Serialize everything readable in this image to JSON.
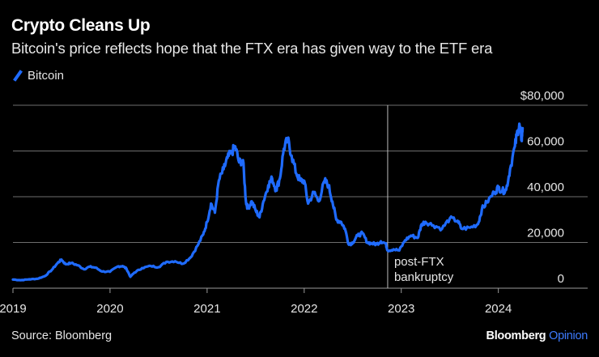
{
  "header": {
    "title": "Crypto Cleans Up",
    "subtitle": "Bitcoin's price reflects hope that the FTX era has given way to the ETF era"
  },
  "footer": {
    "source": "Source: Bloomberg",
    "brand_main": "Bloomberg",
    "brand_accent": "Opinion"
  },
  "colors": {
    "line": "#1f6bff",
    "grid": "#6e6e6e",
    "background": "#000000",
    "text": "#e6e6e6"
  },
  "chart_data": {
    "type": "line",
    "title": "Crypto Cleans Up",
    "legend": [
      "Bitcoin"
    ],
    "legend_position": "top-left",
    "xlabel": "",
    "ylabel": "",
    "xlim": [
      2019.0,
      2024.92
    ],
    "ylim": [
      0,
      80000
    ],
    "x_ticks": [
      2019,
      2020,
      2021,
      2022,
      2023,
      2024
    ],
    "x_tick_labels": [
      "2019",
      "2020",
      "2021",
      "2022",
      "2023",
      "2024"
    ],
    "y_ticks": [
      0,
      20000,
      40000,
      60000,
      80000
    ],
    "y_tick_labels": [
      "0",
      "20,000",
      "40,000",
      "60,000",
      "$80,000"
    ],
    "annotation": {
      "x": 2022.86,
      "lines": [
        "post-FTX",
        "bankruptcy"
      ]
    },
    "series": [
      {
        "name": "Bitcoin",
        "points": [
          [
            2019.0,
            3800
          ],
          [
            2019.08,
            3500
          ],
          [
            2019.17,
            3900
          ],
          [
            2019.25,
            4100
          ],
          [
            2019.33,
            5300
          ],
          [
            2019.4,
            8000
          ],
          [
            2019.46,
            11000
          ],
          [
            2019.5,
            12500
          ],
          [
            2019.54,
            10500
          ],
          [
            2019.6,
            11000
          ],
          [
            2019.67,
            10000
          ],
          [
            2019.73,
            8300
          ],
          [
            2019.79,
            9400
          ],
          [
            2019.85,
            9000
          ],
          [
            2019.92,
            7300
          ],
          [
            2020.0,
            7200
          ],
          [
            2020.08,
            9500
          ],
          [
            2020.13,
            9700
          ],
          [
            2020.17,
            8500
          ],
          [
            2020.21,
            5000
          ],
          [
            2020.25,
            6800
          ],
          [
            2020.33,
            8800
          ],
          [
            2020.42,
            9700
          ],
          [
            2020.5,
            9200
          ],
          [
            2020.58,
            11500
          ],
          [
            2020.67,
            11800
          ],
          [
            2020.75,
            10700
          ],
          [
            2020.83,
            13500
          ],
          [
            2020.9,
            18500
          ],
          [
            2020.96,
            23500
          ],
          [
            2021.0,
            29000
          ],
          [
            2021.04,
            37000
          ],
          [
            2021.08,
            33000
          ],
          [
            2021.12,
            47000
          ],
          [
            2021.17,
            52000
          ],
          [
            2021.21,
            57000
          ],
          [
            2021.25,
            59000
          ],
          [
            2021.29,
            62000
          ],
          [
            2021.33,
            55000
          ],
          [
            2021.37,
            56000
          ],
          [
            2021.4,
            38000
          ],
          [
            2021.42,
            35000
          ],
          [
            2021.46,
            38000
          ],
          [
            2021.5,
            34000
          ],
          [
            2021.54,
            31000
          ],
          [
            2021.58,
            38000
          ],
          [
            2021.63,
            45000
          ],
          [
            2021.67,
            48000
          ],
          [
            2021.71,
            43000
          ],
          [
            2021.75,
            48000
          ],
          [
            2021.79,
            61000
          ],
          [
            2021.83,
            65000
          ],
          [
            2021.87,
            58000
          ],
          [
            2021.92,
            50000
          ],
          [
            2021.96,
            47000
          ],
          [
            2022.0,
            47000
          ],
          [
            2022.04,
            37000
          ],
          [
            2022.1,
            42000
          ],
          [
            2022.15,
            38000
          ],
          [
            2022.21,
            47000
          ],
          [
            2022.25,
            45000
          ],
          [
            2022.29,
            38000
          ],
          [
            2022.33,
            30000
          ],
          [
            2022.38,
            29000
          ],
          [
            2022.42,
            26000
          ],
          [
            2022.46,
            19000
          ],
          [
            2022.5,
            20000
          ],
          [
            2022.55,
            23000
          ],
          [
            2022.6,
            24000
          ],
          [
            2022.65,
            20000
          ],
          [
            2022.7,
            19500
          ],
          [
            2022.75,
            19300
          ],
          [
            2022.79,
            20500
          ],
          [
            2022.84,
            19500
          ],
          [
            2022.86,
            16500
          ],
          [
            2022.92,
            17000
          ],
          [
            2022.98,
            16500
          ],
          [
            2023.04,
            21000
          ],
          [
            2023.1,
            23000
          ],
          [
            2023.17,
            22000
          ],
          [
            2023.21,
            28000
          ],
          [
            2023.25,
            29000
          ],
          [
            2023.33,
            27500
          ],
          [
            2023.42,
            26000
          ],
          [
            2023.5,
            30500
          ],
          [
            2023.58,
            29500
          ],
          [
            2023.62,
            26000
          ],
          [
            2023.71,
            26500
          ],
          [
            2023.79,
            28000
          ],
          [
            2023.83,
            34500
          ],
          [
            2023.88,
            37500
          ],
          [
            2023.96,
            42000
          ],
          [
            2024.0,
            44000
          ],
          [
            2024.04,
            42500
          ],
          [
            2024.08,
            43000
          ],
          [
            2024.12,
            52000
          ],
          [
            2024.17,
            62000
          ],
          [
            2024.2,
            69000
          ],
          [
            2024.22,
            71000
          ],
          [
            2024.24,
            65000
          ],
          [
            2024.25,
            70000
          ]
        ]
      }
    ]
  }
}
